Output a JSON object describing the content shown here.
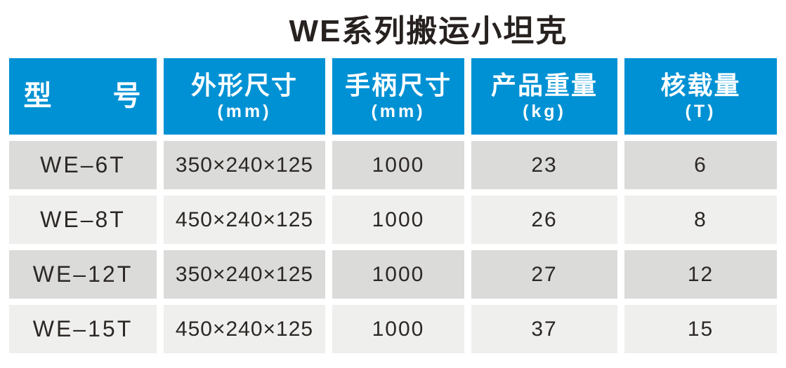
{
  "title": "WE系列搬运小坦克",
  "colors": {
    "header-bg": "#0091d4",
    "header-text": "#ffffff",
    "row-odd-bg": "#dbdbd9",
    "row-even-bg": "#efefed",
    "cell-text": "#2b2724",
    "title-text": "#272220"
  },
  "table": {
    "columns": [
      {
        "id": "model",
        "label": "型 号",
        "unit": ""
      },
      {
        "id": "dimensions",
        "label": "外形尺寸",
        "unit": "(mm)"
      },
      {
        "id": "handle",
        "label": "手柄尺寸",
        "unit": "(mm)"
      },
      {
        "id": "weight",
        "label": "产品重量",
        "unit": "(kg)"
      },
      {
        "id": "capacity",
        "label": "核载量",
        "unit": "(T)"
      }
    ],
    "rows": [
      {
        "model": "WE–6T",
        "dimensions": "350×240×125",
        "handle": "1000",
        "weight": "23",
        "capacity": "6"
      },
      {
        "model": "WE–8T",
        "dimensions": "450×240×125",
        "handle": "1000",
        "weight": "26",
        "capacity": "8"
      },
      {
        "model": "WE–12T",
        "dimensions": "350×240×125",
        "handle": "1000",
        "weight": "27",
        "capacity": "12"
      },
      {
        "model": "WE–15T",
        "dimensions": "450×240×125",
        "handle": "1000",
        "weight": "37",
        "capacity": "15"
      }
    ]
  }
}
